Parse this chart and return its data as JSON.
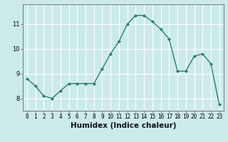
{
  "x": [
    0,
    1,
    2,
    3,
    4,
    5,
    6,
    7,
    8,
    9,
    10,
    11,
    12,
    13,
    14,
    15,
    16,
    17,
    18,
    19,
    20,
    21,
    22,
    23
  ],
  "y": [
    8.8,
    8.5,
    8.1,
    8.0,
    8.3,
    8.6,
    8.6,
    8.6,
    8.6,
    9.2,
    9.8,
    10.3,
    11.0,
    11.35,
    11.35,
    11.1,
    10.8,
    10.4,
    9.1,
    9.1,
    9.7,
    9.8,
    9.4,
    7.75
  ],
  "line_color": "#2e7d6e",
  "marker": "D",
  "marker_size": 2.0,
  "bg_color": "#cceaea",
  "grid_color": "#ffffff",
  "xlabel": "Humidex (Indice chaleur)",
  "ylim": [
    7.5,
    11.8
  ],
  "yticks": [
    8,
    9,
    10,
    11
  ],
  "xlim": [
    -0.5,
    23.5
  ],
  "xticks": [
    0,
    1,
    2,
    3,
    4,
    5,
    6,
    7,
    8,
    9,
    10,
    11,
    12,
    13,
    14,
    15,
    16,
    17,
    18,
    19,
    20,
    21,
    22,
    23
  ],
  "tick_fontsize": 5.5,
  "xlabel_fontsize": 7.5,
  "linewidth": 1.0
}
